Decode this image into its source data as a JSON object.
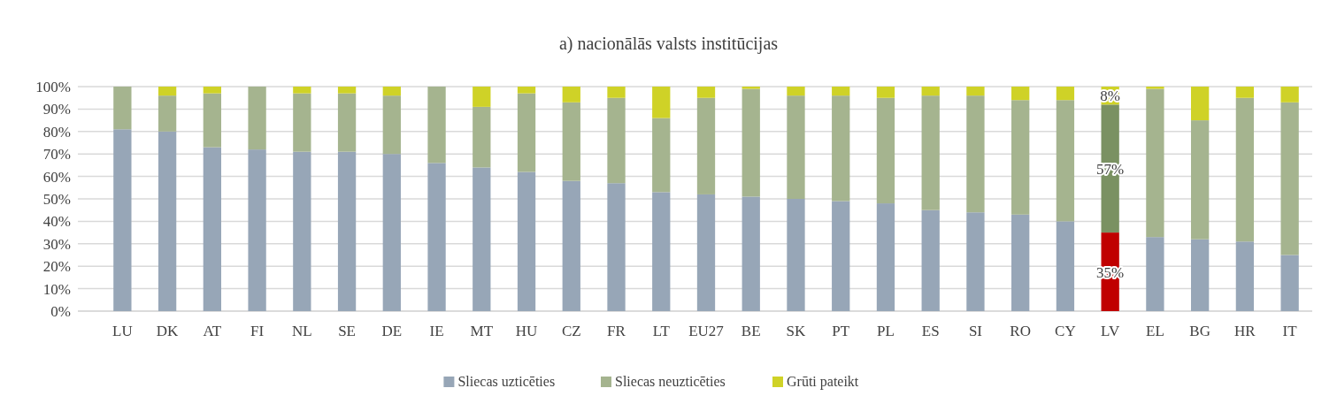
{
  "chart_data": {
    "type": "bar",
    "stacked": true,
    "title": "a) nacionālās valsts institūcijas",
    "categories": [
      "LU",
      "DK",
      "AT",
      "FI",
      "NL",
      "SE",
      "DE",
      "IE",
      "MT",
      "HU",
      "CZ",
      "FR",
      "LT",
      "EU27",
      "BE",
      "SK",
      "PT",
      "PL",
      "ES",
      "SI",
      "RO",
      "CY",
      "LV",
      "EL",
      "BG",
      "HR",
      "IT"
    ],
    "series": [
      {
        "name": "Sliecas uzticēties",
        "color": "#97a6b7",
        "colors": [
          "#97a6b7",
          "#97a6b7",
          "#97a6b7",
          "#97a6b7",
          "#97a6b7",
          "#97a6b7",
          "#97a6b7",
          "#97a6b7",
          "#97a6b7",
          "#97a6b7",
          "#97a6b7",
          "#97a6b7",
          "#97a6b7",
          "#97a6b7",
          "#97a6b7",
          "#97a6b7",
          "#97a6b7",
          "#97a6b7",
          "#97a6b7",
          "#97a6b7",
          "#97a6b7",
          "#97a6b7",
          "#c00000",
          "#97a6b7",
          "#97a6b7",
          "#97a6b7",
          "#97a6b7"
        ],
        "values": [
          81,
          80,
          73,
          72,
          71,
          71,
          70,
          66,
          64,
          62,
          58,
          57,
          53,
          52,
          51,
          50,
          49,
          48,
          45,
          44,
          43,
          40,
          35,
          33,
          32,
          31,
          25
        ],
        "value_labels": [
          null,
          null,
          null,
          null,
          null,
          null,
          null,
          null,
          null,
          null,
          null,
          null,
          null,
          null,
          null,
          null,
          null,
          null,
          null,
          null,
          null,
          null,
          "35%",
          null,
          null,
          null,
          null
        ]
      },
      {
        "name": "Sliecas neuzticēties",
        "color": "#a5b48f",
        "colors": [
          "#a5b48f",
          "#a5b48f",
          "#a5b48f",
          "#a5b48f",
          "#a5b48f",
          "#a5b48f",
          "#a5b48f",
          "#a5b48f",
          "#a5b48f",
          "#a5b48f",
          "#a5b48f",
          "#a5b48f",
          "#a5b48f",
          "#a5b48f",
          "#a5b48f",
          "#a5b48f",
          "#a5b48f",
          "#a5b48f",
          "#a5b48f",
          "#a5b48f",
          "#a5b48f",
          "#a5b48f",
          "#7a9162",
          "#a5b48f",
          "#a5b48f",
          "#a5b48f",
          "#a5b48f"
        ],
        "values": [
          19,
          16,
          24,
          28,
          26,
          26,
          26,
          34,
          27,
          35,
          35,
          38,
          33,
          43,
          48,
          46,
          47,
          47,
          51,
          52,
          51,
          54,
          57,
          66,
          53,
          64,
          68
        ],
        "value_labels": [
          null,
          null,
          null,
          null,
          null,
          null,
          null,
          null,
          null,
          null,
          null,
          null,
          null,
          null,
          null,
          null,
          null,
          null,
          null,
          null,
          null,
          null,
          "57%",
          null,
          null,
          null,
          null
        ]
      },
      {
        "name": "Grūti pateikt",
        "color": "#cfd227",
        "values": [
          0,
          4,
          3,
          0,
          3,
          3,
          4,
          0,
          9,
          3,
          7,
          5,
          14,
          5,
          1,
          4,
          4,
          5,
          4,
          4,
          6,
          6,
          8,
          1,
          15,
          5,
          7
        ],
        "value_labels": [
          null,
          null,
          null,
          null,
          null,
          null,
          null,
          null,
          null,
          null,
          null,
          null,
          null,
          null,
          null,
          null,
          null,
          null,
          null,
          null,
          null,
          null,
          "8%",
          null,
          null,
          null,
          null
        ]
      }
    ],
    "ylim": [
      0,
      100
    ],
    "yticks": [
      {
        "value": 0,
        "label": "0%"
      },
      {
        "value": 10,
        "label": "10%"
      },
      {
        "value": 20,
        "label": "20%"
      },
      {
        "value": 30,
        "label": "30%"
      },
      {
        "value": 40,
        "label": "40%"
      },
      {
        "value": 50,
        "label": "50%"
      },
      {
        "value": 60,
        "label": "60%"
      },
      {
        "value": 70,
        "label": "70%"
      },
      {
        "value": 80,
        "label": "80%"
      },
      {
        "value": 90,
        "label": "90%"
      },
      {
        "value": 100,
        "label": "100%"
      }
    ],
    "grid": "y",
    "legend": "bottom"
  }
}
